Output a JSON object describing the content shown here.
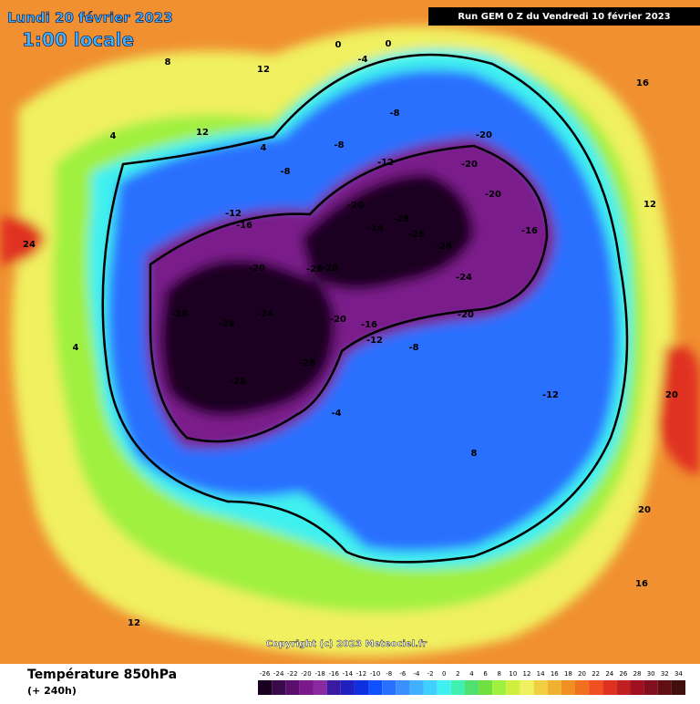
{
  "header": {
    "date": "Lundi 20 février 2023",
    "time": "1:00 locale",
    "run": "Run GEM 0 Z du Vendredi 10 février 2023",
    "copyright": "Copyright (c) 2023 Meteociel.fr"
  },
  "footer": {
    "title": "Température 850hPa",
    "lead": "(+ 240h)"
  },
  "legend": {
    "ticks": [
      -26,
      -24,
      -22,
      -20,
      -18,
      -16,
      -14,
      -12,
      -10,
      -8,
      -6,
      -4,
      -2,
      0,
      2,
      4,
      6,
      8,
      10,
      12,
      14,
      16,
      18,
      20,
      22,
      24,
      26,
      28,
      30,
      32,
      34
    ],
    "colors": [
      "#1a0020",
      "#3a0a4a",
      "#5a106a",
      "#7a1a8a",
      "#8a2aa0",
      "#3a1aa0",
      "#2020c0",
      "#1030e0",
      "#1050ff",
      "#2a70ff",
      "#3a90ff",
      "#40b0ff",
      "#40d0ff",
      "#40f0f0",
      "#40f0b0",
      "#50e070",
      "#70e040",
      "#a0f040",
      "#d0f040",
      "#f0f060",
      "#f0d040",
      "#f0b030",
      "#f09020",
      "#f07020",
      "#f05020",
      "#e03020",
      "#c02020",
      "#a01020",
      "#801020",
      "#601010",
      "#401010"
    ]
  },
  "map_labels": [
    -28,
    -28,
    -28,
    -28,
    -28,
    -28,
    -28,
    -28,
    -28,
    -20,
    -20,
    -20,
    -20,
    -20,
    -20,
    -20,
    -24,
    -24,
    -24,
    -16,
    -16,
    -16,
    -12,
    -12,
    -12,
    -12,
    -8,
    -8,
    -8,
    -8,
    -4,
    -4,
    0,
    0,
    4,
    4,
    8,
    12,
    12,
    12,
    16,
    20,
    20,
    24,
    4,
    8,
    12,
    16
  ]
}
